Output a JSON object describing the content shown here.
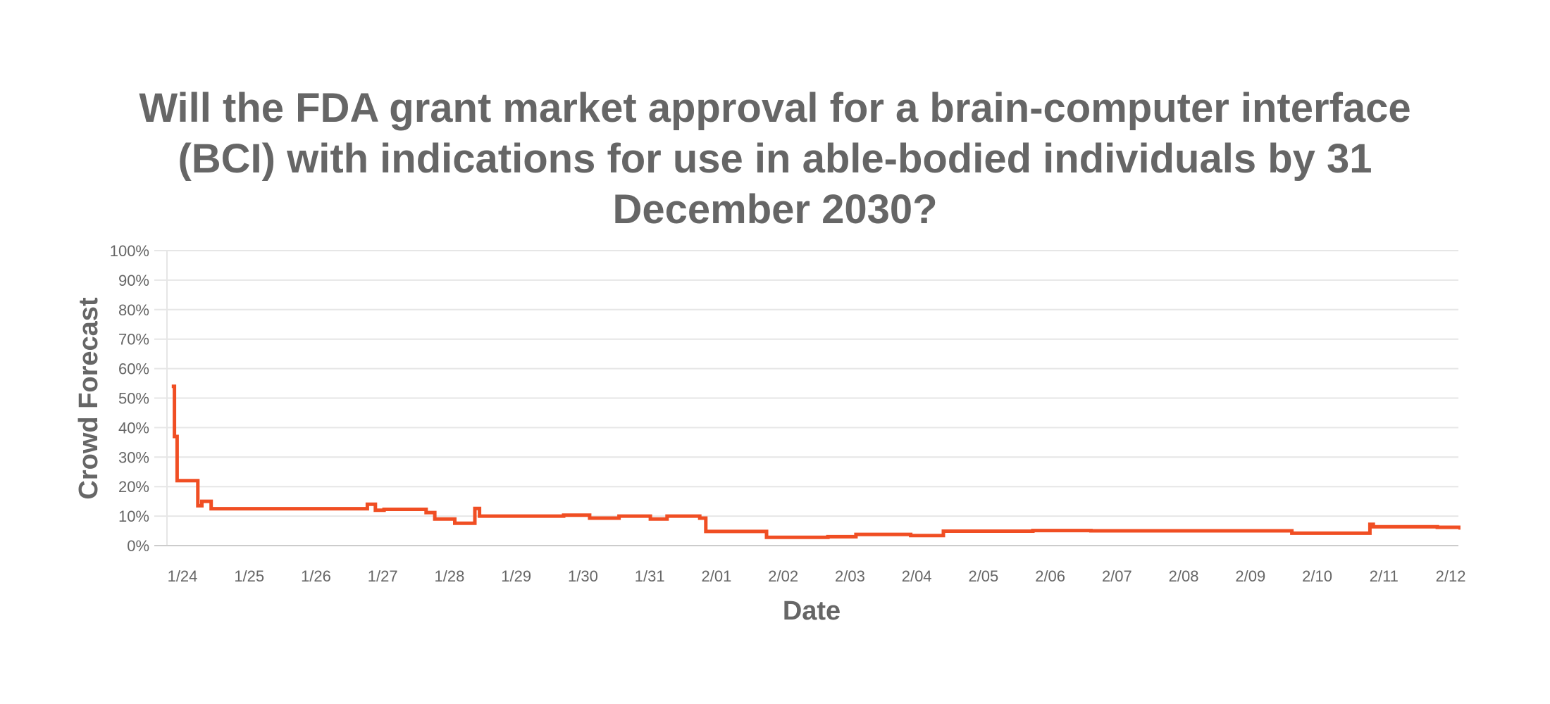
{
  "chart_data": {
    "type": "line",
    "step": true,
    "title": "Will the FDA grant market approval for a brain-computer interface (BCI) with indications for use in able-bodied individuals by 31 December 2030?",
    "title_lines": [
      "Will the FDA grant market approval for a brain-computer interface",
      "(BCI) with indications for use in able-bodied individuals by 31",
      "December 2030?"
    ],
    "xlabel": "Date",
    "ylabel": "Crowd Forecast",
    "ylim": [
      0,
      100
    ],
    "y_ticks": [
      "0%",
      "10%",
      "20%",
      "30%",
      "40%",
      "50%",
      "60%",
      "70%",
      "80%",
      "90%",
      "100%"
    ],
    "x_ticks": [
      "1/24",
      "1/25",
      "1/26",
      "1/27",
      "1/28",
      "1/29",
      "1/30",
      "1/31",
      "2/01",
      "2/02",
      "2/03",
      "2/04",
      "2/05",
      "2/06",
      "2/07",
      "2/08",
      "2/09",
      "2/10",
      "2/11",
      "2/12"
    ],
    "grid": true,
    "legend": null,
    "series": [
      {
        "name": "Crowd Forecast",
        "color": "#f04e23",
        "x_days_from_1_24": [
          -0.16,
          -0.12,
          -0.08,
          0.23,
          0.29,
          0.43,
          2.77,
          2.89,
          3.02,
          3.65,
          3.78,
          4.08,
          4.38,
          4.45,
          5.71,
          6.1,
          6.54,
          7.01,
          7.26,
          7.75,
          7.84,
          8.75,
          9.67,
          10.09,
          10.91,
          11.4,
          12.74,
          13.61,
          16.62,
          17.79,
          17.84,
          18.8,
          19.12
        ],
        "values": [
          54,
          37,
          22,
          13.5,
          15,
          12.5,
          14,
          12,
          12.3,
          11.2,
          9,
          7.6,
          12.6,
          10,
          10.3,
          9.3,
          10,
          9,
          10,
          9.3,
          4.8,
          2.8,
          3,
          3.8,
          3.4,
          4.9,
          5.1,
          5.0,
          4.2,
          7.2,
          6.4,
          6.2,
          6.0
        ]
      }
    ]
  }
}
